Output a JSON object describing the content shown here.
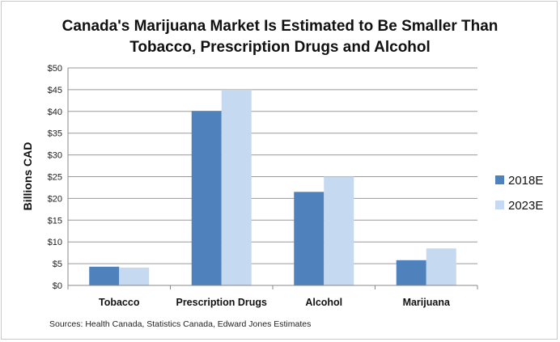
{
  "chart_data": {
    "type": "bar",
    "title_line1": "Canada's Marijuana Market Is Estimated to Be Smaller Than",
    "title_line2": "Tobacco, Prescription Drugs and Alcohol",
    "ylabel": "Billions CAD",
    "xlabel": "",
    "categories": [
      "Tobacco",
      "Prescription Drugs",
      "Alcohol",
      "Marijuana"
    ],
    "series": [
      {
        "name": "2018E",
        "values": [
          4.3,
          40.1,
          21.5,
          5.8
        ],
        "color": "#4f81bd"
      },
      {
        "name": "2023E",
        "values": [
          4.1,
          45.0,
          25.0,
          8.5
        ],
        "color": "#c5d9f1"
      }
    ],
    "ylim": [
      0,
      50
    ],
    "yticks": [
      0,
      5,
      10,
      15,
      20,
      25,
      30,
      35,
      40,
      45,
      50
    ],
    "ytick_prefix": "$",
    "grid": true,
    "legend_position": "right",
    "source": "Sources: Health Canada, Statistics Canada, Edward Jones Estimates"
  }
}
